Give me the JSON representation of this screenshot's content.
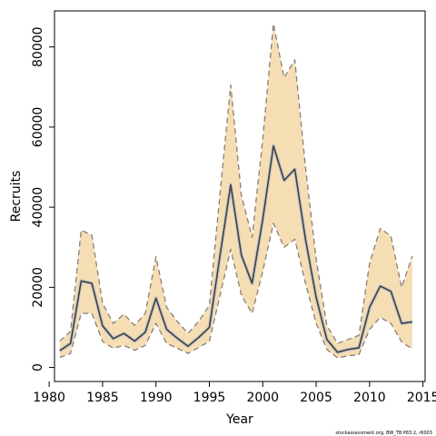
{
  "chart_data": {
    "type": "line",
    "title": "",
    "xlabel": "Year",
    "ylabel": "Recruits",
    "xlim": [
      1980.5,
      2015.2
    ],
    "ylim": [
      -3500,
      89000
    ],
    "x_ticks": [
      1980,
      1985,
      1990,
      1995,
      2000,
      2005,
      2010,
      2015
    ],
    "y_ticks": [
      0,
      20000,
      40000,
      60000,
      80000
    ],
    "x_tick_labels": [
      "1980",
      "1985",
      "1990",
      "1995",
      "2000",
      "2005",
      "2010",
      "2015"
    ],
    "y_tick_labels": [
      "0",
      "20000",
      "40000",
      "60000",
      "80000"
    ],
    "grid": false,
    "x": [
      1981,
      1982,
      1983,
      1984,
      1985,
      1986,
      1987,
      1988,
      1989,
      1990,
      1991,
      1992,
      1993,
      1994,
      1995,
      1996,
      1997,
      1998,
      1999,
      2000,
      2001,
      2002,
      2003,
      2004,
      2005,
      2006,
      2007,
      2008,
      2009,
      2010,
      2011,
      2012,
      2013,
      2014
    ],
    "series": [
      {
        "role": "estimate",
        "values": [
          4200,
          6000,
          21600,
          21000,
          10400,
          7200,
          8500,
          6600,
          8800,
          17300,
          9500,
          7300,
          5300,
          7500,
          10000,
          28000,
          45600,
          28000,
          21000,
          37000,
          55300,
          46700,
          49500,
          32000,
          17500,
          7000,
          3800,
          4500,
          4900,
          15000,
          20300,
          19000,
          11000,
          11400
        ]
      },
      {
        "role": "upper",
        "values": [
          6600,
          9000,
          34300,
          33000,
          16000,
          11000,
          13300,
          10500,
          13500,
          27600,
          15000,
          11500,
          8500,
          11500,
          15500,
          43500,
          70500,
          43000,
          32500,
          57000,
          85800,
          72300,
          76800,
          50000,
          27000,
          10500,
          6000,
          7000,
          8000,
          26000,
          34700,
          32800,
          20000,
          27800
        ]
      },
      {
        "role": "lower",
        "values": [
          2500,
          3500,
          13500,
          13500,
          6500,
          4800,
          5500,
          4300,
          5500,
          11000,
          6000,
          4800,
          3500,
          5000,
          6500,
          18000,
          29500,
          18000,
          13500,
          24000,
          36000,
          30000,
          32000,
          21000,
          11000,
          4500,
          2400,
          2900,
          3200,
          9500,
          12500,
          11000,
          6400,
          4600
        ]
      }
    ],
    "colors": {
      "band_fill": "#f5deb3",
      "band_edge": "#8b7d7b",
      "estimate_line": "#404040",
      "axis": "#000000"
    },
    "credit": "stockassessment.org, BW_TB P83.2, r6003"
  }
}
